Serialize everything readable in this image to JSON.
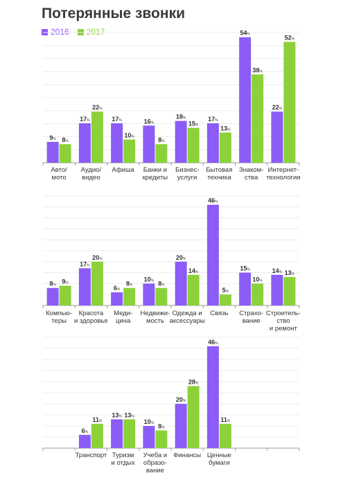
{
  "chart_data": {
    "type": "bar",
    "title": "Потерянные звонки",
    "percent_suffix": "%",
    "series": [
      {
        "name": "2016",
        "color": "#8b5cf6"
      },
      {
        "name": "2017",
        "color": "#8cd13a"
      }
    ],
    "panels": [
      {
        "categories": [
          "Авто/\nмото",
          "Аудио/\nвидео",
          "Афиша",
          "Банки и\nкредиты",
          "Бизнес-\nуслуги",
          "Бытовая\nтехника",
          "Знаком-\nства",
          "Интернет-\nтехнологии"
        ],
        "values_2016": [
          9,
          17,
          17,
          16,
          18,
          17,
          54,
          22
        ],
        "values_2017": [
          8,
          22,
          10,
          8,
          15,
          13,
          38,
          52
        ],
        "ylim": [
          0,
          56
        ]
      },
      {
        "categories": [
          "Компью-\nтеры",
          "Красота\nи здоровье",
          "Меди-\nцина",
          "Недвижи-\nмость",
          "Одежда и\nаксессуары",
          "Связь",
          "Страхо-\nвание",
          "Строитель-\nство\nи ремонт"
        ],
        "values_2016": [
          8,
          17,
          6,
          10,
          20,
          46,
          15,
          14
        ],
        "values_2017": [
          9,
          20,
          8,
          8,
          14,
          5,
          10,
          13
        ],
        "ylim": [
          0,
          50
        ]
      },
      {
        "categories": [
          "",
          "Транспорт",
          "Туризм\nи отдых",
          "Учеба и\nобразо-\nвание",
          "Финансы",
          "Ценные\nбумаги",
          "",
          ""
        ],
        "values_2016": [
          null,
          6,
          13,
          10,
          20,
          46,
          null,
          null
        ],
        "values_2017": [
          null,
          11,
          13,
          8,
          28,
          11,
          null,
          null
        ],
        "ylim": [
          0,
          50
        ]
      }
    ]
  }
}
